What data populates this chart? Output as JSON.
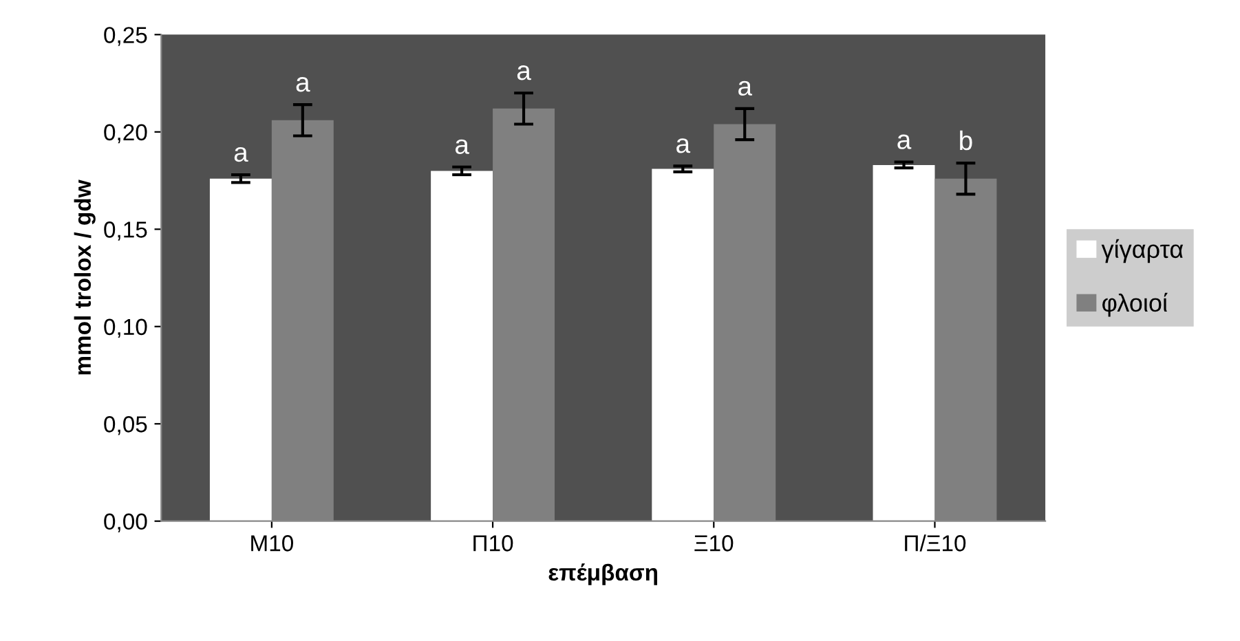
{
  "chart_data": {
    "type": "bar",
    "xlabel": "επέμβαση",
    "ylabel": "mmol trolox / gdw",
    "categories": [
      "M10",
      "Π10",
      "Ξ10",
      "Π/Ξ10"
    ],
    "series": [
      {
        "name": "γίγαρτα",
        "color": "#ffffff",
        "values": [
          0.176,
          0.18,
          0.181,
          0.183
        ],
        "errors": [
          0.002,
          0.002,
          0.0015,
          0.0015
        ],
        "value_labels": [
          "a",
          "a",
          "a",
          "a"
        ]
      },
      {
        "name": "φλοιοί",
        "color": "#808080",
        "values": [
          0.206,
          0.212,
          0.204,
          0.176
        ],
        "errors": [
          0.008,
          0.008,
          0.008,
          0.008
        ],
        "value_labels": [
          "a",
          "a",
          "a",
          "b"
        ]
      }
    ],
    "ylim": [
      0,
      0.25
    ],
    "yticks": [
      {
        "value": 0,
        "label": "0,00"
      },
      {
        "value": 0.05,
        "label": "0,05"
      },
      {
        "value": 0.1,
        "label": "0,10"
      },
      {
        "value": 0.15,
        "label": "0,15"
      },
      {
        "value": 0.2,
        "label": "0,20"
      },
      {
        "value": 0.25,
        "label": "0,25"
      }
    ],
    "grid": false,
    "legend": "right"
  }
}
